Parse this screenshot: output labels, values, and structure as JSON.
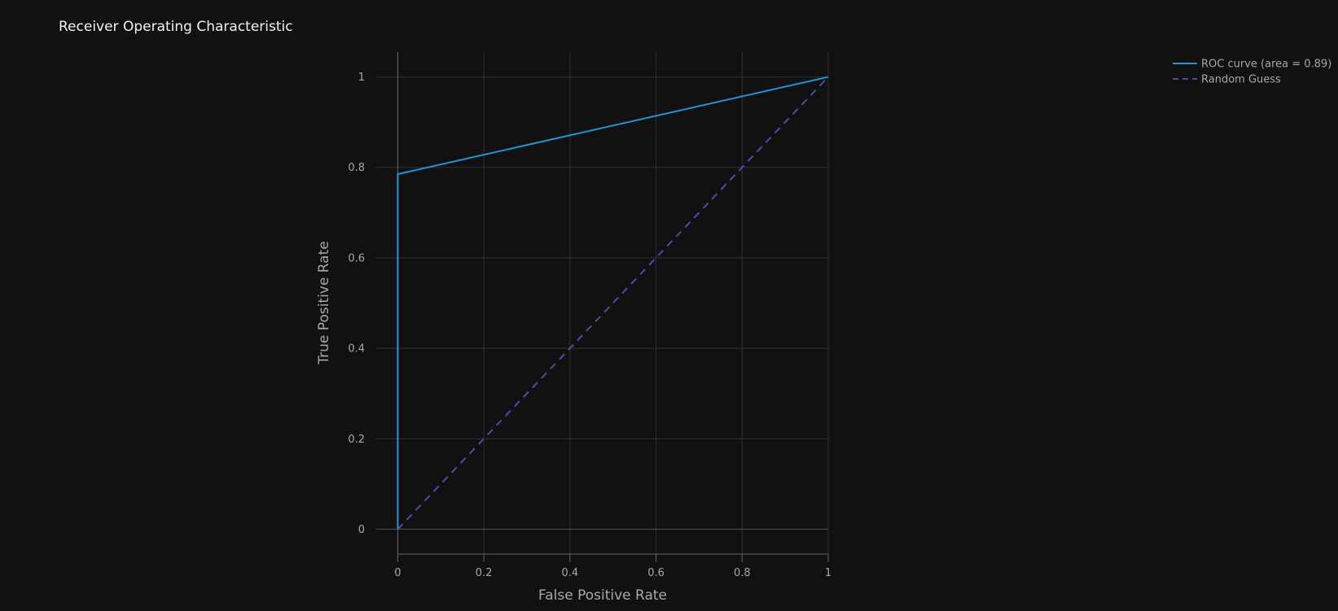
{
  "chart_data": {
    "type": "line",
    "title": "Receiver Operating Characteristic",
    "xlabel": "False Positive Rate",
    "ylabel": "True Positive Rate",
    "xlim": [
      -0.05,
      1
    ],
    "ylim": [
      -0.055,
      1.055
    ],
    "xticks": [
      0,
      0.2,
      0.4,
      0.6,
      0.8,
      1
    ],
    "xtick_labels": [
      "0",
      "0.2",
      "0.4",
      "0.6",
      "0.8",
      "1"
    ],
    "yticks": [
      0,
      0.2,
      0.4,
      0.6,
      0.8,
      1
    ],
    "ytick_labels": [
      "0",
      "0.2",
      "0.4",
      "0.6",
      "0.8",
      "1"
    ],
    "grid": true,
    "legend_position": "top-right",
    "background": "#111111",
    "series": [
      {
        "name": "ROC curve (area = 0.89)",
        "color": "#1e96d8",
        "dash": "solid",
        "x": [
          0,
          0,
          1
        ],
        "y": [
          0,
          0.785,
          1
        ]
      },
      {
        "name": "Random Guess",
        "color": "#4a4cb0",
        "dash": "dash",
        "x": [
          0,
          1
        ],
        "y": [
          0,
          1
        ]
      }
    ]
  }
}
